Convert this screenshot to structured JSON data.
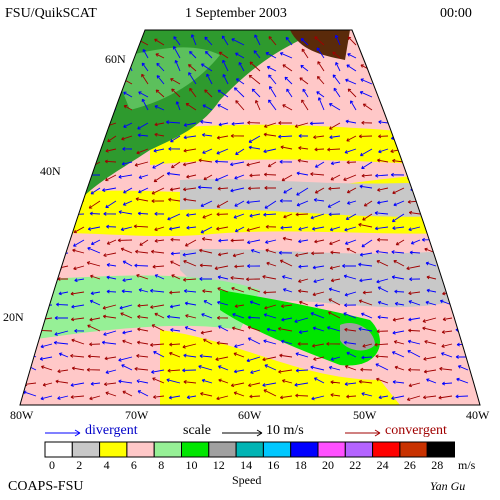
{
  "header": {
    "source": "FSU/QuikSCAT",
    "date": "1 September 2003",
    "time": "00:00"
  },
  "map": {
    "lat_labels": [
      "60N",
      "40N",
      "20N"
    ],
    "lon_labels": [
      "80W",
      "70W",
      "60W",
      "50W",
      "40W"
    ]
  },
  "legend": {
    "divergent": "divergent",
    "scale": "scale",
    "scale_value": "10 m/s",
    "convergent": "convergent"
  },
  "colorbar": {
    "labels": [
      "0",
      "2",
      "4",
      "6",
      "8",
      "10",
      "12",
      "14",
      "16",
      "18",
      "20",
      "22",
      "24",
      "26",
      "28"
    ],
    "unit": "m/s",
    "title": "Speed",
    "colors": [
      "#ffffff",
      "#c8c8c8",
      "#ffff00",
      "#ffc8c8",
      "#96f096",
      "#00e600",
      "#a0a0a0",
      "#00b4b4",
      "#00c8ff",
      "#0000ff",
      "#ff50ff",
      "#b464ff",
      "#ff0000",
      "#c83200",
      "#000000"
    ]
  },
  "footer": {
    "org": "COAPS-FSU",
    "author": "Yan Gu"
  }
}
